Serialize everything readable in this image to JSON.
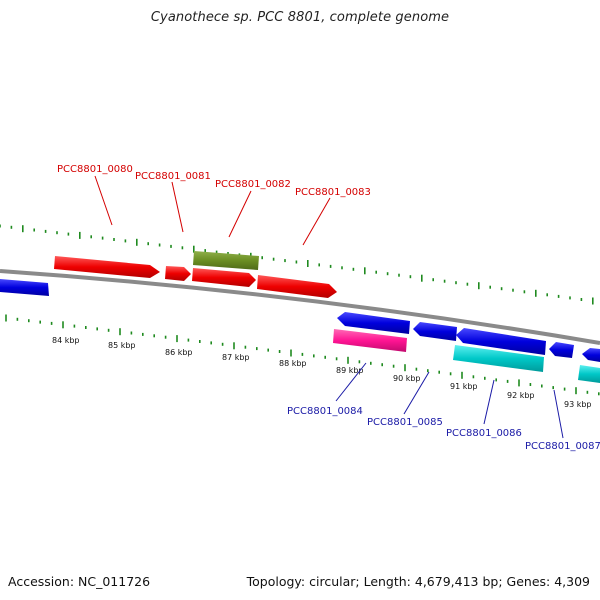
{
  "title": "Cyanothece sp. PCC 8801, complete genome",
  "footer": {
    "accession": "Accession: NC_011726",
    "summary": "Topology: circular; Length: 4,679,413 bp; Genes: 4,309"
  },
  "colors": {
    "backbone": "#8a8a8a",
    "tick": "#1f8a1f",
    "forward_gene": "#ee0000",
    "reverse_gene": "#0000dd",
    "olive_gene": "#6b8e23",
    "magenta_gene": "#ff1493",
    "cyan_gene": "#00c8c8",
    "top_label": "#d40000",
    "bottom_label": "#1a1aa6"
  },
  "scale_labels": [
    "84 kbp",
    "85 kbp",
    "86 kbp",
    "87 kbp",
    "88 kbp",
    "89 kbp",
    "90 kbp",
    "91 kbp",
    "92 kbp",
    "93 kbp"
  ],
  "gene_labels_top": [
    "PCC8801_0080",
    "PCC8801_0081",
    "PCC8801_0082",
    "PCC8801_0083"
  ],
  "gene_labels_bottom": [
    "PCC8801_0084",
    "PCC8801_0085",
    "PCC8801_0086",
    "PCC8801_0087"
  ]
}
